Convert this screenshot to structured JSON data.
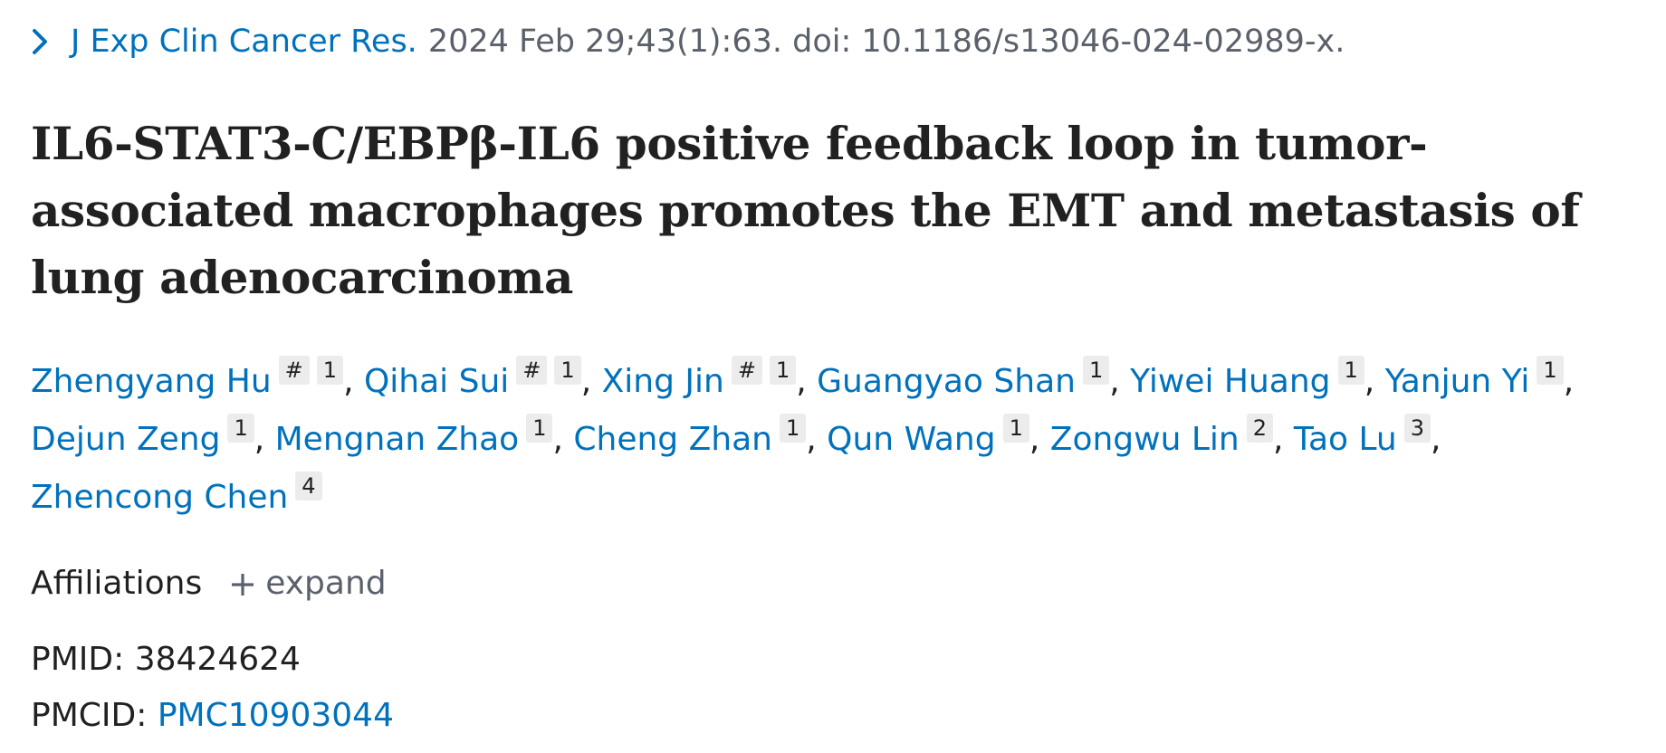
{
  "citation": {
    "journal": "J Exp Clin Cancer Res.",
    "details": "2024 Feb 29;43(1):63. doi: 10.1186/s13046-024-02989-x."
  },
  "article": {
    "title": "IL6-STAT3-C/EBPβ-IL6 positive feedback loop in tumor-associated macrophages promotes the EMT and metastasis of lung adenocarcinoma"
  },
  "authors": [
    {
      "name": "Zhengyang Hu",
      "marks": [
        "#",
        "1"
      ]
    },
    {
      "name": "Qihai Sui",
      "marks": [
        "#",
        "1"
      ]
    },
    {
      "name": "Xing Jin",
      "marks": [
        "#",
        "1"
      ]
    },
    {
      "name": "Guangyao Shan",
      "marks": [
        "1"
      ]
    },
    {
      "name": "Yiwei Huang",
      "marks": [
        "1"
      ]
    },
    {
      "name": "Yanjun Yi",
      "marks": [
        "1"
      ]
    },
    {
      "name": "Dejun Zeng",
      "marks": [
        "1"
      ]
    },
    {
      "name": "Mengnan Zhao",
      "marks": [
        "1"
      ]
    },
    {
      "name": "Cheng Zhan",
      "marks": [
        "1"
      ]
    },
    {
      "name": "Qun Wang",
      "marks": [
        "1"
      ]
    },
    {
      "name": "Zongwu Lin",
      "marks": [
        "2"
      ]
    },
    {
      "name": "Tao Lu",
      "marks": [
        "3"
      ]
    },
    {
      "name": "Zhencong Chen",
      "marks": [
        "4"
      ]
    }
  ],
  "affiliations": {
    "label": "Affiliations",
    "expand_label": "expand",
    "expand_icon": "plus-icon"
  },
  "identifiers": {
    "pmid_label": "PMID:",
    "pmid_value": "38424624",
    "pmcid_label": "PMCID:",
    "pmcid_value": "PMC10903044"
  },
  "colors": {
    "link": "#0071bc",
    "text": "#212121",
    "muted": "#5b616b",
    "badge_bg": "#ececec"
  }
}
